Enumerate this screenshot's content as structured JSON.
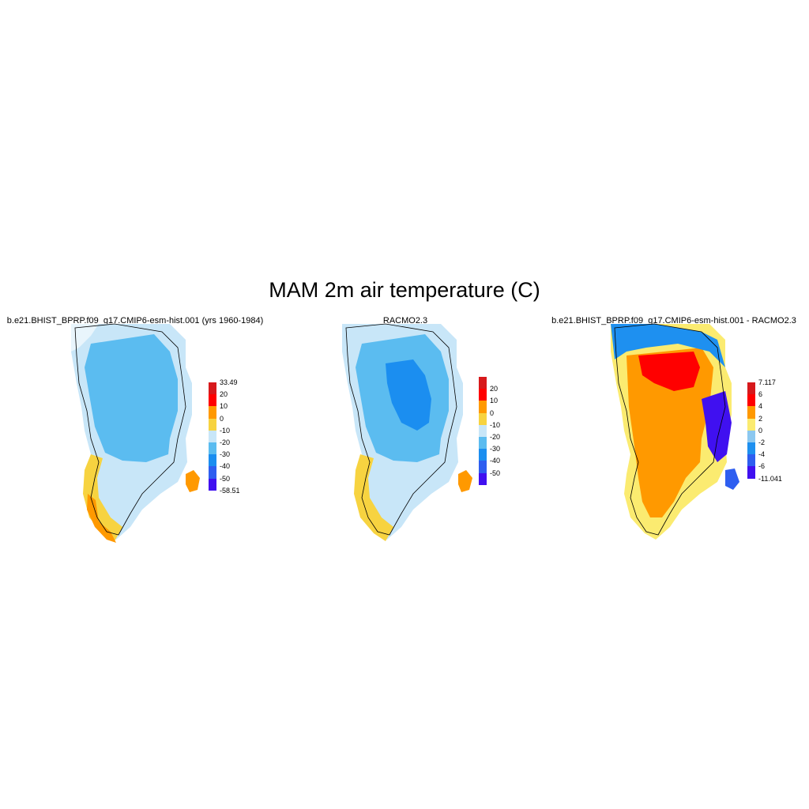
{
  "title": "MAM 2m air temperature (C)",
  "panels": [
    {
      "title": "b.e21.BHIST_BPRP.f09_g17.CMIP6-esm-hist.001 (yrs 1960-1984)",
      "colorbar": {
        "labels": [
          "33.49",
          "20",
          "10",
          "0",
          "-10",
          "-20",
          "-30",
          "-40",
          "-50",
          "-58.51"
        ],
        "colors": [
          "#d7191c",
          "#ff0000",
          "#ff9900",
          "#f7d340",
          "#c8e6f8",
          "#5bbcf0",
          "#1b8ef0",
          "#2e5ef0",
          "#4010f0"
        ]
      }
    },
    {
      "title": "RACMO2.3",
      "colorbar": {
        "labels": [
          "20",
          "10",
          "0",
          "-10",
          "-20",
          "-30",
          "-40",
          "-50"
        ],
        "colors": [
          "#d7191c",
          "#ff0000",
          "#ff9900",
          "#f7d340",
          "#c8e6f8",
          "#5bbcf0",
          "#1b8ef0",
          "#2e5ef0",
          "#4010f0"
        ]
      }
    },
    {
      "title": "b.e21.BHIST_BPRP.f09_g17.CMIP6-esm-hist.001 - RACMO2.3",
      "colorbar": {
        "labels": [
          "7.117",
          "6",
          "4",
          "2",
          "0",
          "-2",
          "-4",
          "-6",
          "-11.041"
        ],
        "colors": [
          "#d7191c",
          "#ff0000",
          "#ff9900",
          "#fbeb70",
          "#8cc8f0",
          "#1e90f0",
          "#2e5ef0",
          "#4010f0"
        ]
      }
    }
  ]
}
